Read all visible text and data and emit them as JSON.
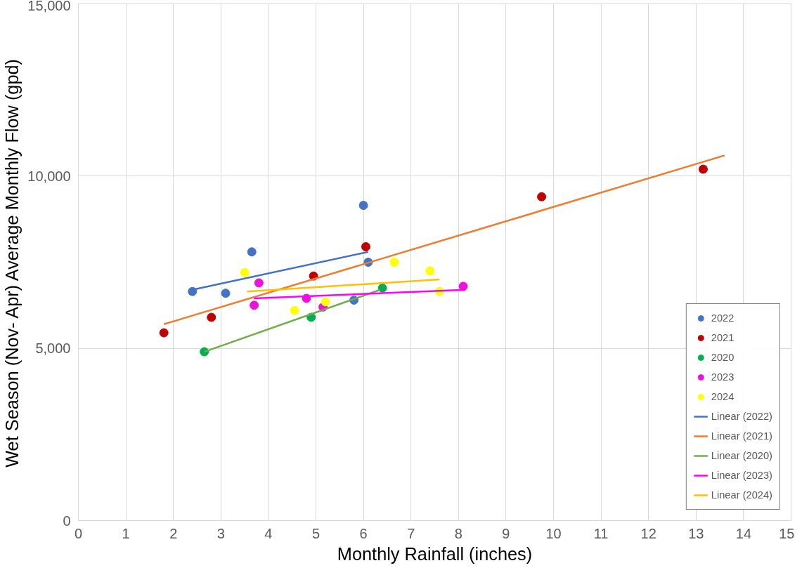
{
  "chart_data": {
    "type": "scatter",
    "xlabel": "Monthly Rainfall (inches)",
    "ylabel": "Wet Season (Nov- Apr) Average Monthly Flow (gpd)",
    "xlim": [
      0,
      15
    ],
    "ylim": [
      0,
      15000
    ],
    "xticks": [
      0,
      1,
      2,
      3,
      4,
      5,
      6,
      7,
      8,
      9,
      10,
      11,
      12,
      13,
      14,
      15
    ],
    "yticks": [
      {
        "value": 0,
        "label": "0"
      },
      {
        "value": 5000,
        "label": "5,000"
      },
      {
        "value": 10000,
        "label": "10,000"
      },
      {
        "value": 15000,
        "label": "15,000"
      }
    ],
    "grid": true,
    "legend": "bottom right",
    "series": [
      {
        "name": "2022",
        "marker": "circle",
        "color": "#4472c4",
        "x": [
          2.4,
          3.1,
          3.65,
          5.8,
          6.0,
          6.1
        ],
        "values": [
          6650,
          6600,
          7800,
          6400,
          9150,
          7500
        ]
      },
      {
        "name": "2021",
        "marker": "circle",
        "color": "#c00000",
        "x": [
          1.8,
          2.8,
          4.95,
          6.05,
          9.75,
          13.15
        ],
        "values": [
          5450,
          5900,
          7100,
          7950,
          9400,
          10200
        ]
      },
      {
        "name": "2020",
        "marker": "circle",
        "color": "#00b050",
        "x": [
          2.65,
          4.9,
          6.4
        ],
        "values": [
          4900,
          5900,
          6750
        ]
      },
      {
        "name": "2023",
        "marker": "circle",
        "color": "#ee11dd",
        "x": [
          3.7,
          3.8,
          4.8,
          5.15,
          8.1
        ],
        "values": [
          6250,
          6900,
          6450,
          6200,
          6800
        ]
      },
      {
        "name": "2024",
        "marker": "circle",
        "color": "#ffff00",
        "x": [
          3.5,
          4.55,
          5.2,
          6.65,
          7.4,
          7.6
        ],
        "values": [
          7200,
          6100,
          6350,
          7500,
          7250,
          6650
        ]
      },
      {
        "name": "Linear (2022)",
        "type": "line",
        "color": "#4472c4",
        "x": [
          2.4,
          6.1
        ],
        "values": [
          6700,
          7800
        ]
      },
      {
        "name": "Linear (2021)",
        "type": "line",
        "color": "#ed7d31",
        "x": [
          1.8,
          13.6
        ],
        "values": [
          5700,
          10600
        ]
      },
      {
        "name": "Linear (2020)",
        "type": "line",
        "color": "#70ad47",
        "x": [
          2.65,
          6.35
        ],
        "values": [
          4900,
          6700
        ]
      },
      {
        "name": "Linear (2023)",
        "type": "line",
        "color": "#ff00ff",
        "x": [
          3.7,
          8.15
        ],
        "values": [
          6450,
          6700
        ]
      },
      {
        "name": "Linear (2024)",
        "type": "line",
        "color": "#ffc000",
        "x": [
          3.55,
          7.6
        ],
        "values": [
          6650,
          7000
        ]
      }
    ]
  }
}
